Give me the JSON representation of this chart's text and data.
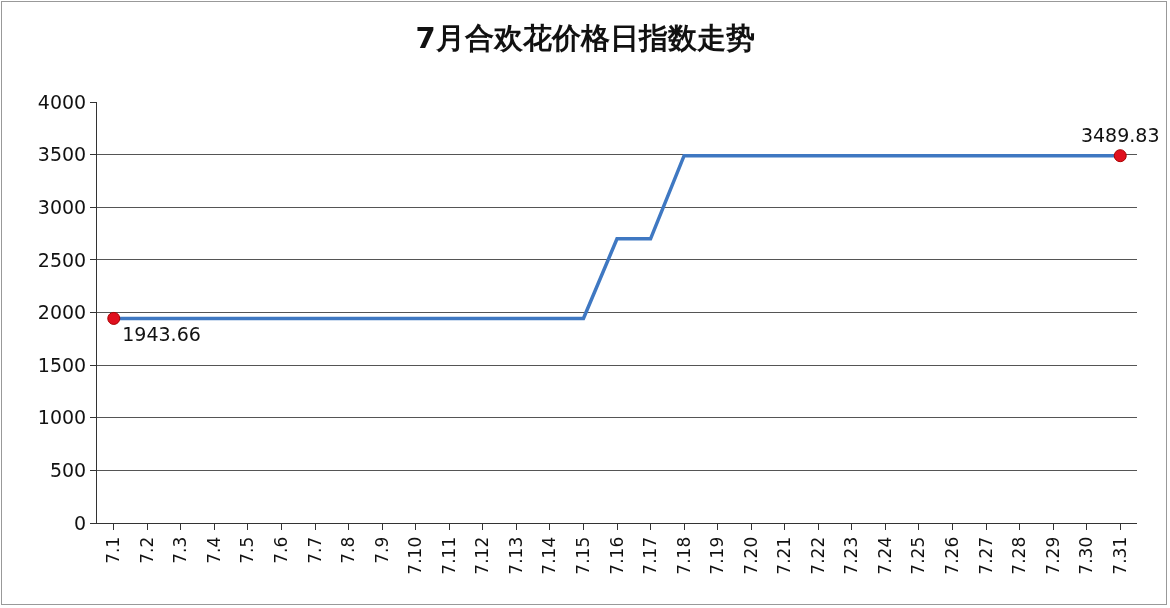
{
  "chart_data": {
    "type": "line",
    "title": "7月合欢花价格日指数走势",
    "categories": [
      "7.1",
      "7.2",
      "7.3",
      "7.4",
      "7.5",
      "7.6",
      "7.7",
      "7.8",
      "7.9",
      "7.10",
      "7.11",
      "7.12",
      "7.13",
      "7.14",
      "7.15",
      "7.16",
      "7.17",
      "7.18",
      "7.19",
      "7.20",
      "7.21",
      "7.22",
      "7.23",
      "7.24",
      "7.25",
      "7.26",
      "7.27",
      "7.28",
      "7.29",
      "7.30",
      "7.31"
    ],
    "series": [
      {
        "color": "#3f78c2",
        "line_style": "solid",
        "marker": "none",
        "values": [
          1943.66,
          1943.66,
          1943.66,
          1943.66,
          1943.66,
          1943.66,
          1943.66,
          1943.66,
          1943.66,
          1943.66,
          1943.66,
          1943.66,
          1943.66,
          1943.66,
          1943.66,
          2700,
          2700,
          3489.83,
          3489.83,
          3489.83,
          3489.83,
          3489.83,
          3489.83,
          3489.83,
          3489.83,
          3489.83,
          3489.83,
          3489.83,
          3489.83,
          3489.83,
          3489.83
        ]
      },
      {
        "type": "scatter",
        "color": "#e0101e",
        "marker": "circle",
        "values": [
          1943.66,
          null,
          null,
          null,
          null,
          null,
          null,
          null,
          null,
          null,
          null,
          null,
          null,
          null,
          null,
          null,
          null,
          null,
          null,
          null,
          null,
          null,
          null,
          null,
          null,
          null,
          null,
          null,
          null,
          null,
          3489.83
        ],
        "value_labels": [
          "1943.66",
          null,
          null,
          null,
          null,
          null,
          null,
          null,
          null,
          null,
          null,
          null,
          null,
          null,
          null,
          null,
          null,
          null,
          null,
          null,
          null,
          null,
          null,
          null,
          null,
          null,
          null,
          null,
          null,
          null,
          "3489.83"
        ]
      }
    ],
    "ylim": [
      0,
      4000
    ],
    "yticks": [
      0,
      500,
      1000,
      1500,
      2000,
      2500,
      3000,
      3500,
      4000
    ],
    "grid": "y"
  }
}
